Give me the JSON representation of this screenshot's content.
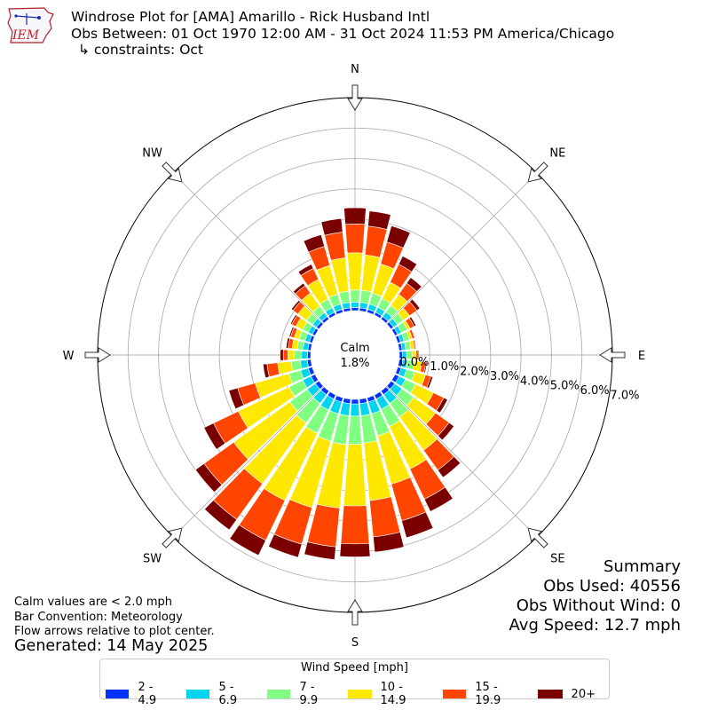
{
  "header": {
    "logo_text": "IEM",
    "title_line1": "Windrose Plot for [AMA] Amarillo - Rick Husband Intl",
    "title_line2": "Obs Between: 01 Oct 1970 12:00 AM - 31 Oct 2024 11:53 PM America/Chicago",
    "title_line3": "↳ constraints: Oct"
  },
  "notes": {
    "calm_note": "Calm values are < 2.0 mph",
    "bar_convention": "Bar Convention: Meteorology",
    "flow_note": "Flow arrows relative to plot center.",
    "generated": "Generated: 14 May 2025"
  },
  "summary": {
    "title": "Summary",
    "obs_used": "Obs Used: 40556",
    "obs_without_wind": "Obs Without Wind: 0",
    "avg_speed": "Avg Speed: 12.7 mph"
  },
  "legend": {
    "title": "Wind Speed [mph]",
    "items": [
      {
        "label": "2 - 4.9",
        "color": "#0033ff"
      },
      {
        "label": "5 - 6.9",
        "color": "#00d4ee"
      },
      {
        "label": "7 - 9.9",
        "color": "#80ff80"
      },
      {
        "label": "10 - 14.9",
        "color": "#ffe800"
      },
      {
        "label": "15 - 19.9",
        "color": "#ff4500"
      },
      {
        "label": "20+",
        "color": "#7a0000"
      }
    ]
  },
  "chart_data": {
    "type": "windrose",
    "calm_label": "Calm",
    "calm_percent": "1.8%",
    "direction_labels": [
      "N",
      "NE",
      "E",
      "SE",
      "S",
      "SW",
      "W",
      "NW"
    ],
    "radial_ticks": [
      "0.0%",
      "1.0%",
      "2.0%",
      "3.0%",
      "4.0%",
      "5.0%",
      "6.0%",
      "7.0%"
    ],
    "rmax_percent": 7.0,
    "speed_bins": [
      "2 - 4.9",
      "5 - 6.9",
      "7 - 9.9",
      "10 - 14.9",
      "15 - 19.9",
      "20+"
    ],
    "directions_deg": [
      0,
      10,
      20,
      30,
      40,
      50,
      60,
      70,
      80,
      90,
      100,
      110,
      120,
      130,
      140,
      150,
      160,
      170,
      180,
      190,
      200,
      210,
      220,
      230,
      240,
      250,
      260,
      270,
      280,
      290,
      300,
      310,
      320,
      330,
      340,
      350
    ],
    "cumulative_percent": [
      [
        0.1,
        0.28,
        0.68,
        1.9,
        2.85,
        3.38
      ],
      [
        0.1,
        0.28,
        0.68,
        1.85,
        2.8,
        3.3
      ],
      [
        0.1,
        0.28,
        0.65,
        1.65,
        2.4,
        2.95
      ],
      [
        0.1,
        0.28,
        0.6,
        1.2,
        1.85,
        2.15
      ],
      [
        0.1,
        0.28,
        0.55,
        1.0,
        1.45,
        1.68
      ],
      [
        0.1,
        0.26,
        0.5,
        0.75,
        1.05,
        1.17
      ],
      [
        0.1,
        0.24,
        0.45,
        0.55,
        0.7,
        0.77
      ],
      [
        0.1,
        0.22,
        0.4,
        0.5,
        0.58,
        0.6
      ],
      [
        0.1,
        0.22,
        0.38,
        0.5,
        0.55,
        0.57
      ],
      [
        0.1,
        0.24,
        0.42,
        0.55,
        0.62,
        0.65
      ],
      [
        0.12,
        0.27,
        0.5,
        0.75,
        0.88,
        0.92
      ],
      [
        0.12,
        0.3,
        0.58,
        0.95,
        1.13,
        1.2
      ],
      [
        0.15,
        0.38,
        0.75,
        1.4,
        1.78,
        1.92
      ],
      [
        0.15,
        0.45,
        0.92,
        1.8,
        2.35,
        2.55
      ],
      [
        0.15,
        0.5,
        1.05,
        2.4,
        3.2,
        3.5
      ],
      [
        0.15,
        0.52,
        1.15,
        2.7,
        3.8,
        4.25
      ],
      [
        0.15,
        0.55,
        1.3,
        2.95,
        4.2,
        4.78
      ],
      [
        0.15,
        0.55,
        1.45,
        3.35,
        4.55,
        5.05
      ],
      [
        0.15,
        0.55,
        1.48,
        3.5,
        4.75,
        5.18
      ],
      [
        0.15,
        0.55,
        1.5,
        3.6,
        4.88,
        5.3
      ],
      [
        0.15,
        0.55,
        1.48,
        3.75,
        5.0,
        5.45
      ],
      [
        0.15,
        0.55,
        1.4,
        3.85,
        5.3,
        5.85
      ],
      [
        0.15,
        0.5,
        1.3,
        3.75,
        5.2,
        5.62
      ],
      [
        0.15,
        0.48,
        1.18,
        3.45,
        4.65,
        5.0
      ],
      [
        0.15,
        0.45,
        0.95,
        2.8,
        3.7,
        4.05
      ],
      [
        0.14,
        0.4,
        0.8,
        1.95,
        2.55,
        2.85
      ],
      [
        0.12,
        0.35,
        0.65,
        1.1,
        1.45,
        1.58
      ],
      [
        0.1,
        0.3,
        0.55,
        0.75,
        0.9,
        1.0
      ],
      [
        0.1,
        0.26,
        0.45,
        0.62,
        0.75,
        0.82
      ],
      [
        0.1,
        0.25,
        0.45,
        0.62,
        0.74,
        0.79
      ],
      [
        0.1,
        0.25,
        0.45,
        0.7,
        0.85,
        0.9
      ],
      [
        0.1,
        0.26,
        0.5,
        0.85,
        1.05,
        1.12
      ],
      [
        0.1,
        0.26,
        0.52,
        1.05,
        1.35,
        1.45
      ],
      [
        0.1,
        0.27,
        0.58,
        1.3,
        1.7,
        1.85
      ],
      [
        0.1,
        0.28,
        0.62,
        1.6,
        2.25,
        2.65
      ],
      [
        0.1,
        0.28,
        0.65,
        1.75,
        2.6,
        3.05
      ]
    ]
  }
}
